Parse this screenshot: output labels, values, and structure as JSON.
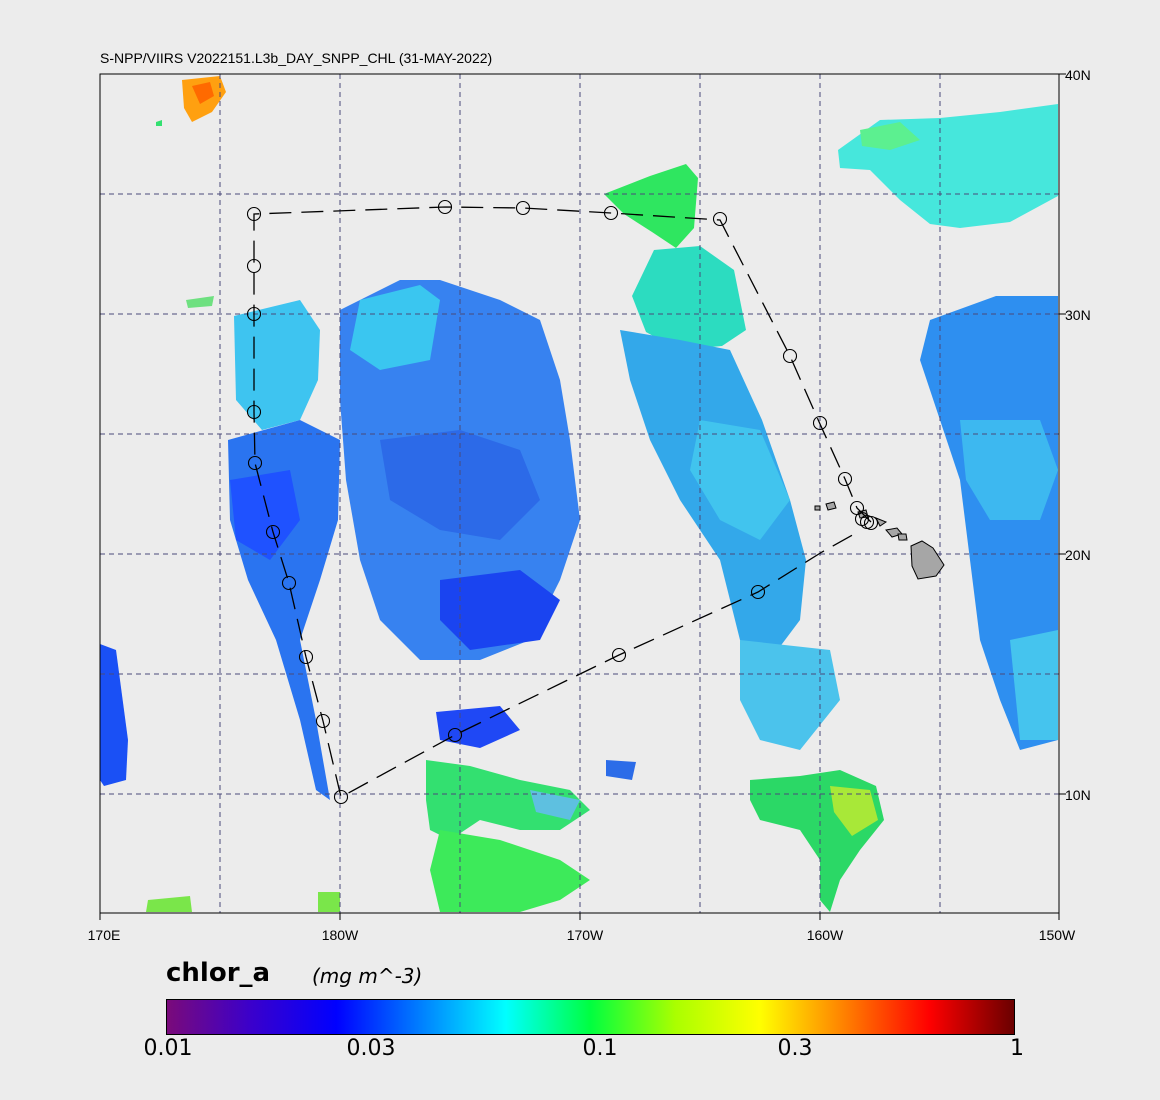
{
  "map": {
    "title": "S-NPP/VIIRS V2022151.L3b_DAY_SNPP_CHL (31-MAY-2022)",
    "lon_labels": [
      "170E",
      "180W",
      "170W",
      "160W",
      "150W"
    ],
    "lat_labels": [
      "40N",
      "30N",
      "20N",
      "10N"
    ]
  },
  "colorbar": {
    "variable": "chlor_a",
    "units": "(mg m^-3)",
    "scale": "log",
    "range": [
      0.01,
      1
    ],
    "tick_labels": [
      "0.01",
      "0.03",
      "0.1",
      "0.3",
      "1"
    ],
    "colors": [
      "#7a0a7a",
      "#3a00cc",
      "#0000ff",
      "#0080ff",
      "#00ffff",
      "#00ff40",
      "#aaff00",
      "#ffff00",
      "#ff8000",
      "#ff0000",
      "#6a0000"
    ]
  }
}
